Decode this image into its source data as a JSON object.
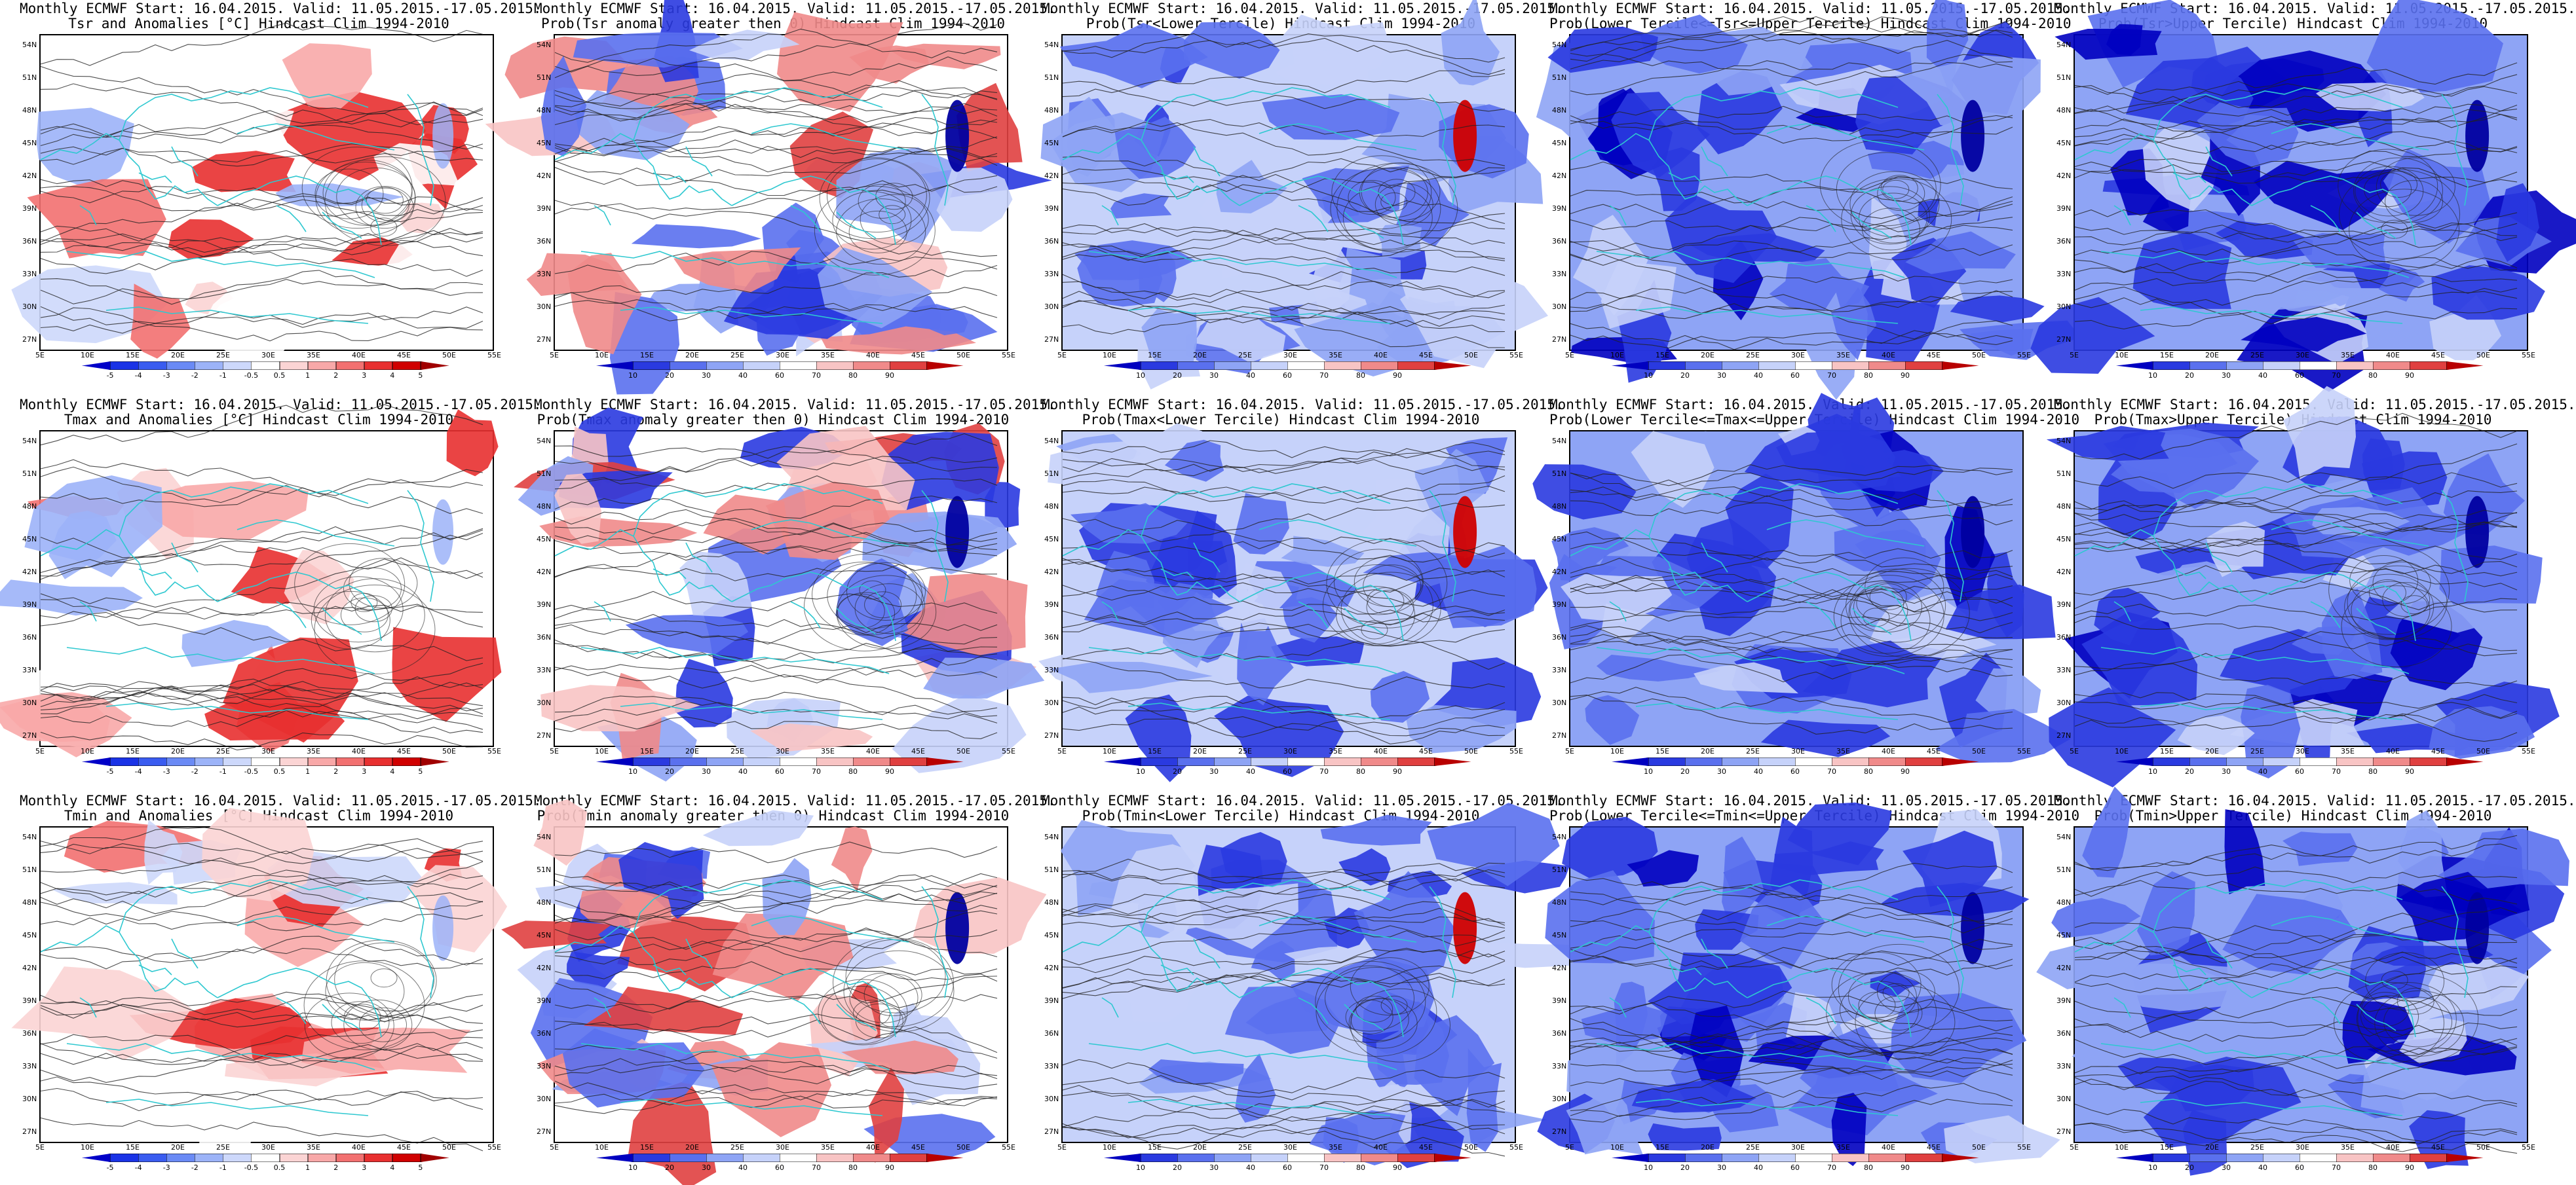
{
  "rows": [
    {
      "panels": [
        {
          "title1": "Monthly ECMWF Start: 16.04.2015. Valid: 11.05.2015.-17.05.2015.",
          "title2": "Tsr and Anomalies [°C] Hindcast Clim 1994-2010",
          "kind": "anomaly",
          "style": "anom",
          "seed": 11
        },
        {
          "title1": "Monthly ECMWF Start: 16.04.2015. Valid: 11.05.2015.-17.05.2015.",
          "title2": "Prob(Tsr anomaly greater then 0) Hindcast Clim 1994-2010",
          "kind": "prob",
          "style": "mixed",
          "seed": 12
        },
        {
          "title1": "Monthly ECMWF Start: 16.04.2015. Valid: 11.05.2015.-17.05.2015.",
          "title2": "Prob(Tsr<Lower Tercile) Hindcast Clim 1994-2010",
          "kind": "prob",
          "style": "blue",
          "seed": 13
        },
        {
          "title1": "Monthly ECMWF Start: 16.04.2015. Valid: 11.05.2015.-17.05.2015.",
          "title2": "Prob(Lower Tercile<=Tsr<=Upper Tercile) Hindcast Clim 1994-2010",
          "kind": "prob",
          "style": "deepblue",
          "seed": 14
        },
        {
          "title1": "Monthly ECMWF Start: 16.04.2015. Valid: 11.05.2015.-17.05.2015.",
          "title2": "Prob(Tsr>Upper Tercile) Hindcast Clim 1994-2010",
          "kind": "prob",
          "style": "deepblue",
          "seed": 15
        }
      ]
    },
    {
      "panels": [
        {
          "title1": "Monthly ECMWF Start: 16.04.2015. Valid: 11.05.2015.-17.05.2015.",
          "title2": "Tmax and Anomalies [°C] Hindcast Clim 1994-2010",
          "kind": "anomaly",
          "style": "anom",
          "seed": 21
        },
        {
          "title1": "Monthly ECMWF Start: 16.04.2015. Valid: 11.05.2015.-17.05.2015.",
          "title2": "Prob(Tmax anomaly greater then 0) Hindcast Clim 1994-2010",
          "kind": "prob",
          "style": "mixed",
          "seed": 22
        },
        {
          "title1": "Monthly ECMWF Start: 16.04.2015. Valid: 11.05.2015.-17.05.2015.",
          "title2": "Prob(Tmax<Lower Tercile) Hindcast Clim 1994-2010",
          "kind": "prob",
          "style": "blue",
          "seed": 23
        },
        {
          "title1": "Monthly ECMWF Start: 16.04.2015. Valid: 11.05.2015.-17.05.2015.",
          "title2": "Prob(Lower Tercile<=Tmax<=Upper Tercile) Hindcast Clim 1994-2010",
          "kind": "prob",
          "style": "deepblue",
          "seed": 24
        },
        {
          "title1": "Monthly ECMWF Start: 16.04.2015. Valid: 11.05.2015.-17.05.2015.",
          "title2": "Prob(Tmax>Upper Tercile) Hindcast Clim 1994-2010",
          "kind": "prob",
          "style": "deepblue",
          "seed": 25
        }
      ]
    },
    {
      "panels": [
        {
          "title1": "Monthly ECMWF Start: 16.04.2015. Valid: 11.05.2015.-17.05.2015.",
          "title2": "Tmin and Anomalies [°C] Hindcast Clim 1994-2010",
          "kind": "anomaly",
          "style": "anom",
          "seed": 31
        },
        {
          "title1": "Monthly ECMWF Start: 16.04.2015. Valid: 11.05.2015.-17.05.2015.",
          "title2": "Prob(Tmin anomaly greater then 0) Hindcast Clim 1994-2010",
          "kind": "prob",
          "style": "mixed",
          "seed": 32
        },
        {
          "title1": "Monthly ECMWF Start: 16.04.2015. Valid: 11.05.2015.-17.05.2015.",
          "title2": "Prob(Tmin<Lower Tercile) Hindcast Clim 1994-2010",
          "kind": "prob",
          "style": "blue",
          "seed": 33
        },
        {
          "title1": "Monthly ECMWF Start: 16.04.2015. Valid: 11.05.2015.-17.05.2015.",
          "title2": "Prob(Lower Tercile<=Tmin<=Upper Tercile) Hindcast Clim 1994-2010",
          "kind": "prob",
          "style": "deepblue",
          "seed": 34
        },
        {
          "title1": "Monthly ECMWF Start: 16.04.2015. Valid: 11.05.2015.-17.05.2015.",
          "title2": "Prob(Tmin>Upper Tercile) Hindcast Clim 1994-2010",
          "kind": "prob",
          "style": "deepblue",
          "seed": 35
        }
      ]
    }
  ],
  "lat_labels": [
    "54N",
    "51N",
    "48N",
    "45N",
    "42N",
    "39N",
    "36N",
    "33N",
    "30N",
    "27N"
  ],
  "lon_labels": [
    "5E",
    "10E",
    "15E",
    "20E",
    "25E",
    "30E",
    "35E",
    "40E",
    "45E",
    "50E",
    "55E"
  ],
  "legend_anomaly": {
    "ticks": [
      "-5",
      "-4",
      "-3",
      "-2",
      "-1",
      "-0.5",
      "0.5",
      "1",
      "2",
      "3",
      "4",
      "5"
    ],
    "colors": [
      "#0000c8",
      "#1a33e6",
      "#3a5cf0",
      "#6a8af5",
      "#9cb3f8",
      "#cdd8fb",
      "#ffffff",
      "#fbd4d4",
      "#f8a8a8",
      "#f27070",
      "#e83030",
      "#d00000",
      "#a00000"
    ]
  },
  "legend_prob": {
    "ticks": [
      "10",
      "20",
      "30",
      "40",
      "60",
      "70",
      "80",
      "90"
    ],
    "colors": [
      "#0000c0",
      "#2a3ae0",
      "#5a70ee",
      "#8ea4f5",
      "#c6d2fa",
      "#ffffff",
      "#f8c4c4",
      "#f08a8a",
      "#e04040",
      "#b80000"
    ]
  },
  "colors": {
    "contour": "#222222",
    "coast": "#2ec8d0"
  }
}
